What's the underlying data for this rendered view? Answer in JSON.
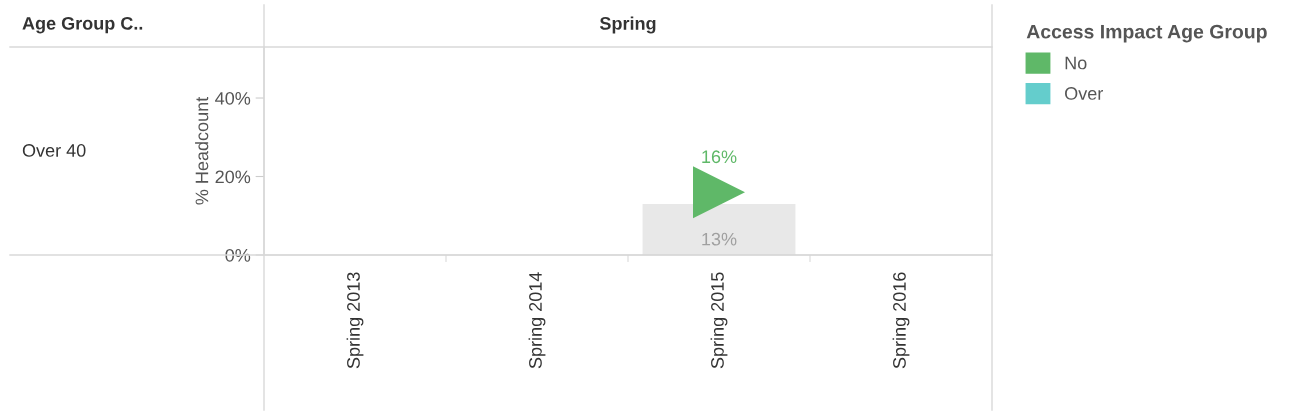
{
  "chart_data": {
    "type": "bar",
    "title": "Spring",
    "ylabel": "% Headcount",
    "annotations": [
      "Age Group C..",
      "Over 40"
    ],
    "categories": [
      "Spring 2013",
      "Spring 2014",
      "Spring 2015",
      "Spring 2016"
    ],
    "series": [
      {
        "color": "#e8e8e8",
        "values": [
          null,
          null,
          13,
          null
        ],
        "value_labels": [
          null,
          null,
          "13%",
          null
        ]
      },
      {
        "type": "scatter",
        "name": "No",
        "color": "#5fb868",
        "marker": "triangle",
        "values": [
          null,
          null,
          16,
          null
        ],
        "value_labels": [
          null,
          null,
          "16%",
          null
        ]
      },
      {
        "type": "scatter",
        "name": "Over",
        "color": "#64cdcc",
        "marker": "triangle",
        "values": [
          null,
          null,
          null,
          null
        ]
      }
    ],
    "ylim": [
      0,
      53
    ],
    "yticks": [
      {
        "value": 0,
        "label": "0%"
      },
      {
        "value": 20,
        "label": "20%"
      },
      {
        "value": 40,
        "label": "40%"
      }
    ],
    "grid": false,
    "legend": "right",
    "legend_title": "Access Impact Age Group"
  }
}
